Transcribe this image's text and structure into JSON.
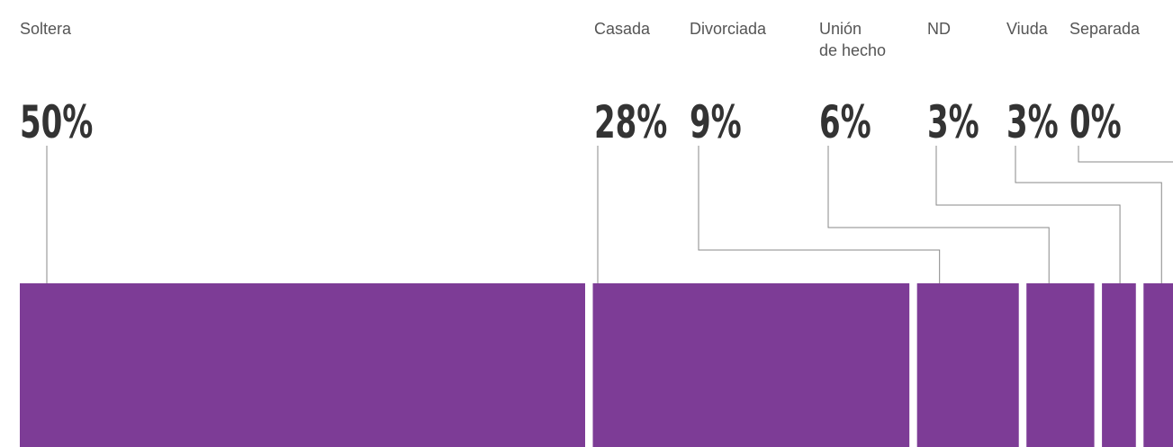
{
  "chart_data": {
    "type": "bar",
    "categories": [
      "Soltera",
      "Casada",
      "Divorciada",
      "Unión de hecho",
      "ND",
      "Viuda",
      "Separada"
    ],
    "values": [
      50,
      28,
      9,
      6,
      3,
      3,
      0
    ],
    "value_labels": [
      "50%",
      "28%",
      "9%",
      "6%",
      "3%",
      "3%",
      "0%"
    ],
    "color": "#7d3c96"
  }
}
